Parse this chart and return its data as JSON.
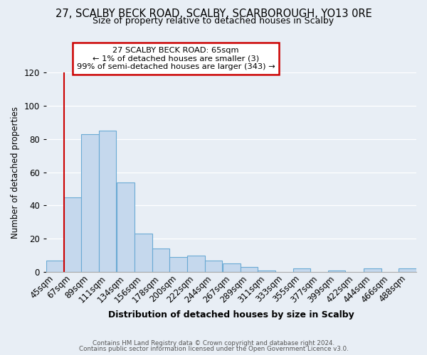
{
  "title": "27, SCALBY BECK ROAD, SCALBY, SCARBOROUGH, YO13 0RE",
  "subtitle": "Size of property relative to detached houses in Scalby",
  "xlabel": "Distribution of detached houses by size in Scalby",
  "ylabel": "Number of detached properties",
  "bar_labels": [
    "45sqm",
    "67sqm",
    "89sqm",
    "111sqm",
    "134sqm",
    "156sqm",
    "178sqm",
    "200sqm",
    "222sqm",
    "244sqm",
    "267sqm",
    "289sqm",
    "311sqm",
    "333sqm",
    "355sqm",
    "377sqm",
    "399sqm",
    "422sqm",
    "444sqm",
    "466sqm",
    "488sqm"
  ],
  "bar_values": [
    7,
    45,
    83,
    85,
    54,
    23,
    14,
    9,
    10,
    7,
    5,
    3,
    1,
    0,
    2,
    0,
    1,
    0,
    2,
    0,
    2
  ],
  "bar_color": "#c5d8ed",
  "bar_edge_color": "#6aaad4",
  "ylim_max": 120,
  "yticks": [
    0,
    20,
    40,
    60,
    80,
    100,
    120
  ],
  "vline_color": "#cc0000",
  "annotation_line1": "27 SCALBY BECK ROAD: 65sqm",
  "annotation_line2": "← 1% of detached houses are smaller (3)",
  "annotation_line3": "99% of semi-detached houses are larger (343) →",
  "background_color": "#e8eef5",
  "grid_color": "#ffffff",
  "bin_starts": [
    45,
    67,
    89,
    111,
    134,
    156,
    178,
    200,
    222,
    244,
    267,
    289,
    311,
    333,
    355,
    377,
    399,
    422,
    444,
    466,
    488
  ],
  "bin_width": 22,
  "vline_x": 67,
  "footer1": "Contains HM Land Registry data © Crown copyright and database right 2024.",
  "footer2": "Contains public sector information licensed under the Open Government Licence v3.0."
}
